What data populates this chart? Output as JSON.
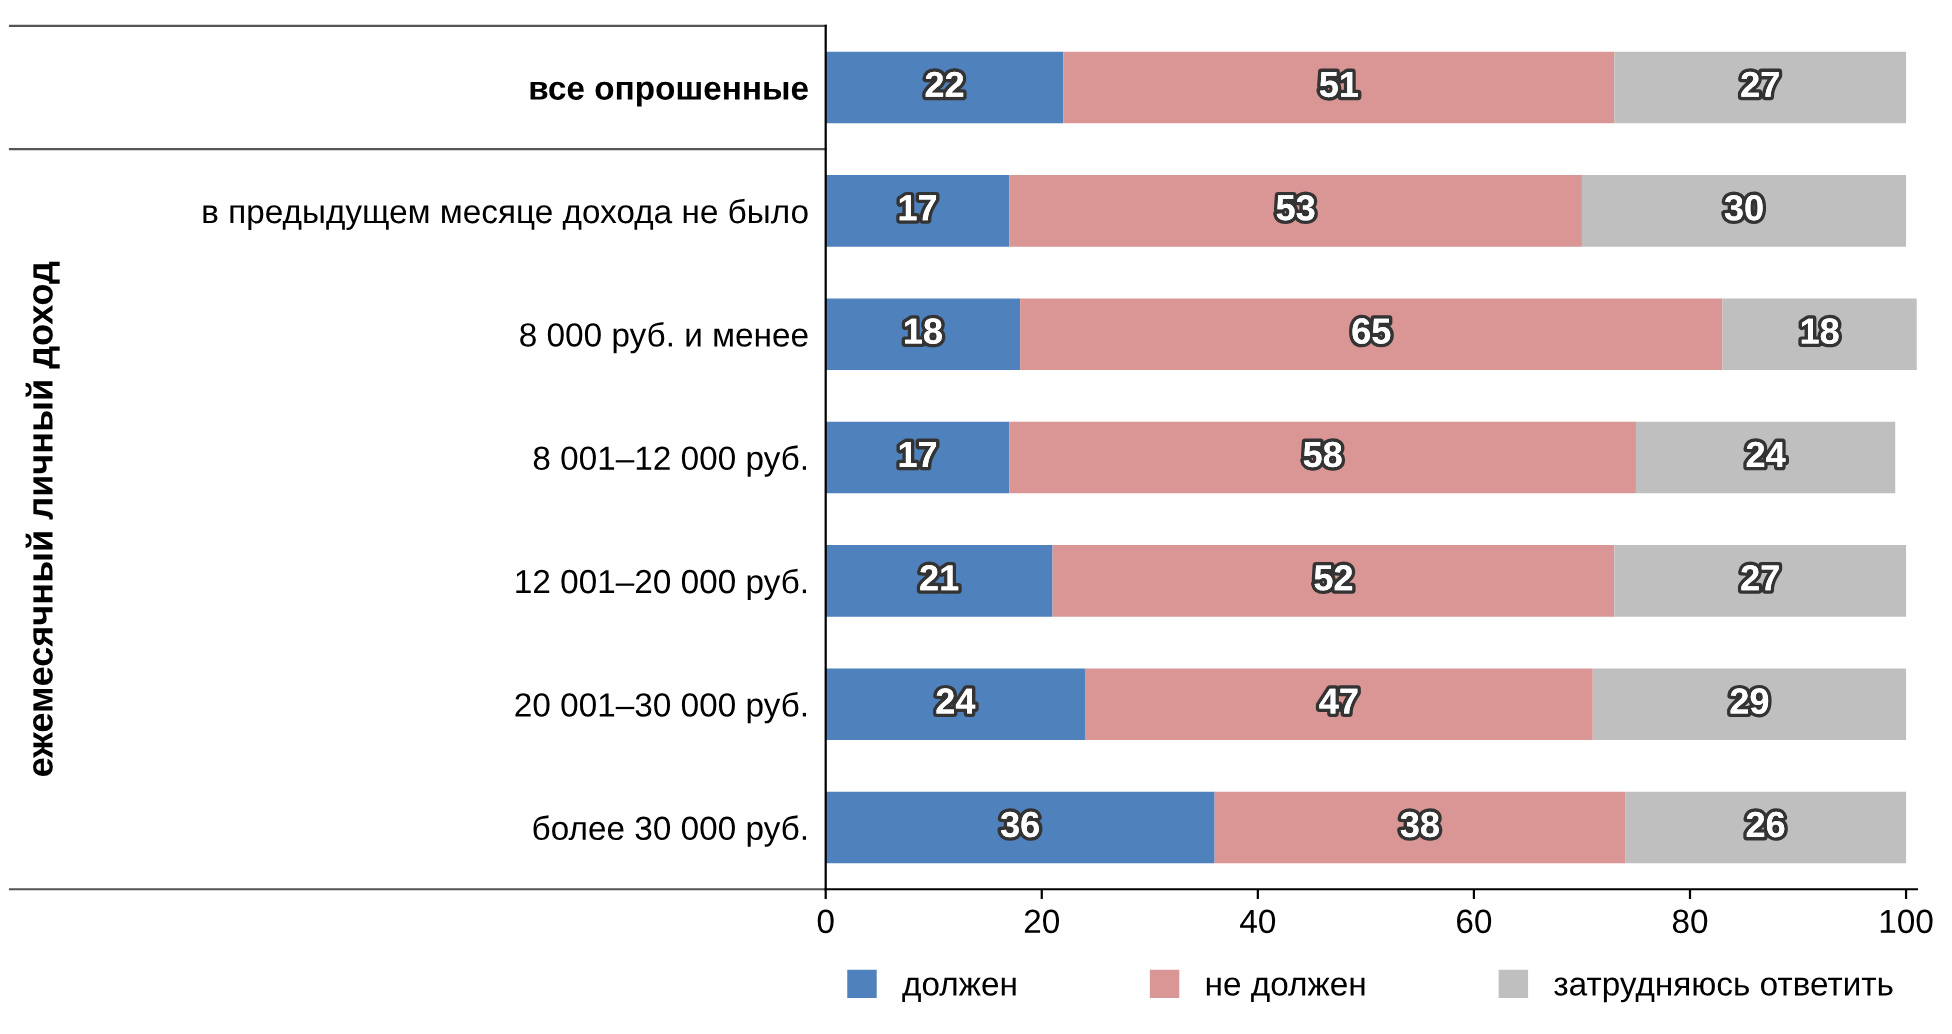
{
  "chart_data": {
    "type": "bar",
    "orientation": "horizontal",
    "stacked": true,
    "categories": [
      "все опрошенные",
      "в предыдущем месяце дохода не было",
      "8 000 руб. и менее",
      "8 001–12 000 руб.",
      "12 001–20 000 руб.",
      "20 001–30 000 руб.",
      "более 30 000 руб."
    ],
    "series": [
      {
        "name": "должен",
        "color": "#4f81bd",
        "values": [
          22,
          17,
          18,
          17,
          21,
          24,
          36
        ]
      },
      {
        "name": "не должен",
        "color": "#d99694",
        "values": [
          51,
          53,
          65,
          58,
          52,
          47,
          38
        ]
      },
      {
        "name": "затрудняюсь ответить",
        "color": "#bfbfbf",
        "values": [
          27,
          30,
          18,
          24,
          27,
          29,
          26
        ]
      }
    ],
    "xlim": [
      0,
      101
    ],
    "xticks": [
      0,
      20,
      40,
      60,
      80,
      100
    ],
    "data_labels": true,
    "legend": "bottom",
    "grid": false,
    "annotations": [
      "ежемесячный личный доход"
    ]
  }
}
